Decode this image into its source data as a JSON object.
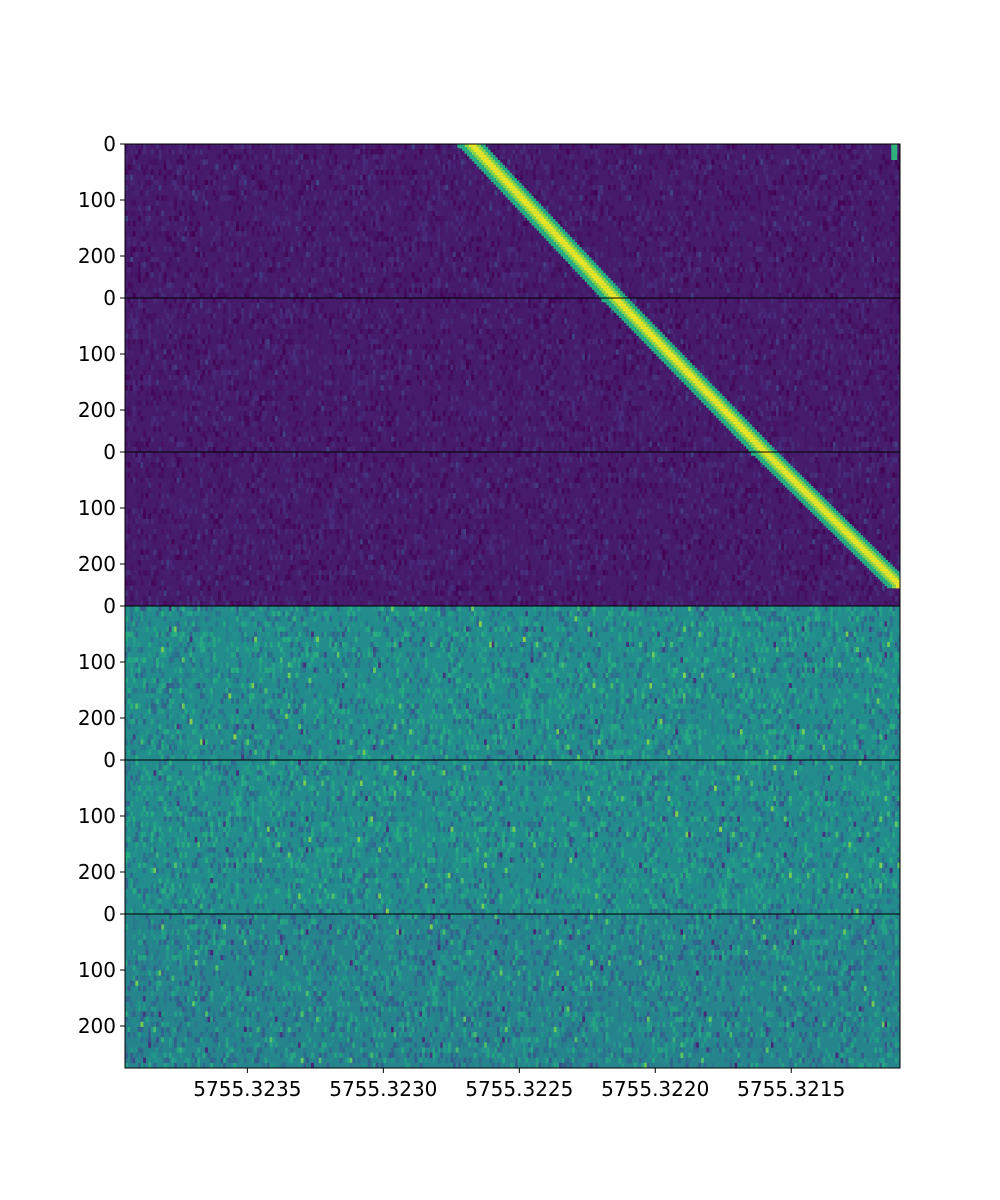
{
  "chart_data": {
    "type": "heatmap",
    "colormap": "viridis",
    "x_axis_inverted": true,
    "xlim": [
      5755.32395,
      5755.3211
    ],
    "xticks": [
      5755.3235,
      5755.323,
      5755.3225,
      5755.322,
      5755.3215
    ],
    "xtick_labels": [
      "5755.3235",
      "5755.3230",
      "5755.3225",
      "5755.3220",
      "5755.3215"
    ],
    "panel_ylim": [
      0,
      275
    ],
    "panel_yticks": [
      0,
      100,
      200
    ],
    "panels": [
      {
        "signal_track": {
          "x_start": 5755.32268,
          "y_start": 0,
          "x_end": 5755.32215,
          "y_end": 275
        },
        "noise_level": 0.08,
        "noise_spread": 0.06,
        "extra_spot": {
          "x": 5755.32111,
          "y": 10
        }
      },
      {
        "signal_track": {
          "x_start": 5755.32215,
          "y_start": 0,
          "x_end": 5755.3216,
          "y_end": 275
        },
        "noise_level": 0.08,
        "noise_spread": 0.06
      },
      {
        "signal_track": {
          "x_start": 5755.3216,
          "y_start": 0,
          "x_end": 5755.3211,
          "y_end": 240
        },
        "noise_level": 0.08,
        "noise_spread": 0.06
      },
      {
        "noise_level": 0.48,
        "noise_spread": 0.16
      },
      {
        "noise_level": 0.48,
        "noise_spread": 0.16
      },
      {
        "noise_level": 0.45,
        "noise_spread": 0.16
      }
    ]
  }
}
